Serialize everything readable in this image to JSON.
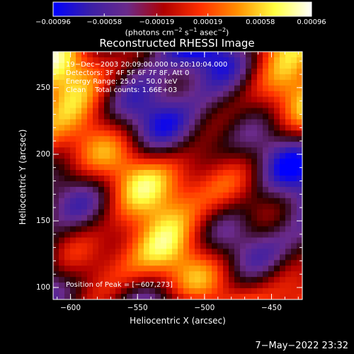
{
  "chart_data": {
    "type": "heatmap",
    "title": "Reconstructed RHESSI Image",
    "xlabel": "Heliocentric X (arcsec)",
    "ylabel": "Heliocentric Y (arcsec)",
    "xlim": [
      -613,
      -427
    ],
    "ylim": [
      91,
      277
    ],
    "x_ticks": [
      -600,
      -550,
      -500,
      -450
    ],
    "x_tick_labels": [
      "−600",
      "−550",
      "−500",
      "−450"
    ],
    "y_ticks": [
      100,
      150,
      200,
      250
    ],
    "y_tick_labels": [
      "100",
      "150",
      "200",
      "250"
    ],
    "colorbar": {
      "range": [
        -0.00096,
        0.00096
      ],
      "ticks": [
        -0.00096,
        -0.00058,
        -0.00019,
        0.00019,
        0.00058,
        0.00096
      ],
      "tick_labels": [
        "−0.00096",
        "−0.00058",
        "−0.00019",
        "0.00019",
        "0.00058",
        "0.00096"
      ],
      "colors": [
        "#0000ff",
        "#3a1fa8",
        "#6a2a8a",
        "#b00000",
        "#ff3000",
        "#ff9000",
        "#ffff40",
        "#ffffff"
      ]
    },
    "units": {
      "prefix": "(photons cm",
      "exp1": "−2",
      "mid1": " s",
      "exp2": "−1",
      "mid2": " asec",
      "exp3": "−2",
      "suffix": ")"
    },
    "annotations": [
      "19−Dec−2003 20:09:00.000 to 20:10:04.000",
      "Detectors: 3F 4F 5F 6F 7F 8F, Att 0",
      "Energy Range: 25.0 − 50.0 keV",
      "Clean    Total counts: 1.66E+03"
    ],
    "peak_label": "Position of Peak = [−607,273]",
    "peak_position": [
      -607,
      273
    ],
    "grid_size": [
      44,
      44
    ]
  },
  "footer": {
    "timestamp": "7−May−2022 23:32"
  }
}
